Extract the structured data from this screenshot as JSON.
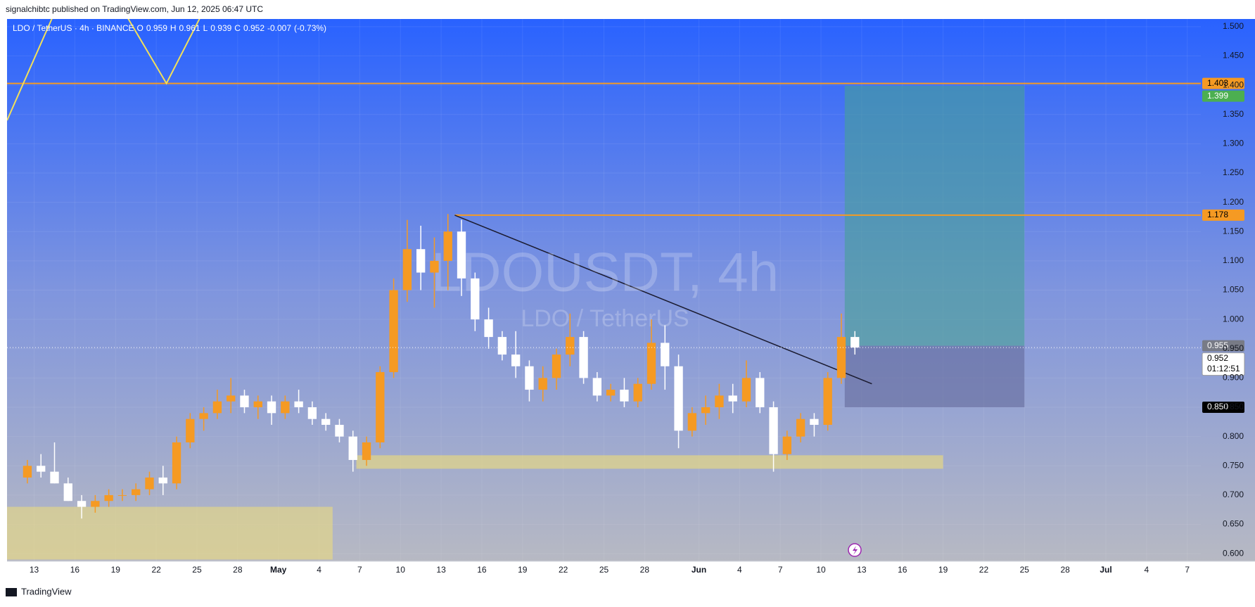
{
  "header": "signalchibtc published on TradingView.com, Jun 12, 2025 06:47 UTC",
  "footer": "TradingView",
  "chart_data": {
    "type": "candlestick",
    "legend": {
      "symbol": "LDO / TetherUS · 4h · BINANCE",
      "labels": [
        "O",
        "H",
        "L",
        "C"
      ],
      "open": 0.959,
      "high": 0.961,
      "low": 0.939,
      "close": 0.952,
      "change": -0.007,
      "change_pct": {
        "value": -0.73,
        "label": "(-0.73%)"
      }
    },
    "watermark": {
      "title": "LDOUSDT, 4h",
      "subtitle": "LDO / TetherUS"
    },
    "up_color": "#f59a23",
    "down_color": "#ffffff",
    "x": [
      "2025-04-12",
      "2025-04-13",
      "2025-04-14",
      "2025-04-15",
      "2025-04-16",
      "2025-04-17",
      "2025-04-18",
      "2025-04-19",
      "2025-04-20",
      "2025-04-21",
      "2025-04-22",
      "2025-04-23",
      "2025-04-24",
      "2025-04-25",
      "2025-04-26",
      "2025-04-27",
      "2025-04-28",
      "2025-04-29",
      "2025-04-30",
      "2025-05-01",
      "2025-05-02",
      "2025-05-03",
      "2025-05-04",
      "2025-05-05",
      "2025-05-06",
      "2025-05-07",
      "2025-05-08",
      "2025-05-09",
      "2025-05-10",
      "2025-05-11",
      "2025-05-12",
      "2025-05-13",
      "2025-05-14",
      "2025-05-15",
      "2025-05-16",
      "2025-05-17",
      "2025-05-18",
      "2025-05-19",
      "2025-05-20",
      "2025-05-21",
      "2025-05-22",
      "2025-05-23",
      "2025-05-24",
      "2025-05-25",
      "2025-05-26",
      "2025-05-27",
      "2025-05-28",
      "2025-05-29",
      "2025-05-30",
      "2025-05-31",
      "2025-06-01",
      "2025-06-02",
      "2025-06-03",
      "2025-06-04",
      "2025-06-05",
      "2025-06-06",
      "2025-06-07",
      "2025-06-08",
      "2025-06-09",
      "2025-06-10",
      "2025-06-11",
      "2025-06-12"
    ],
    "open": [
      0.73,
      0.75,
      0.74,
      0.72,
      0.69,
      0.68,
      0.69,
      0.7,
      0.7,
      0.71,
      0.73,
      0.72,
      0.79,
      0.83,
      0.84,
      0.86,
      0.87,
      0.85,
      0.86,
      0.84,
      0.86,
      0.85,
      0.83,
      0.82,
      0.8,
      0.76,
      0.79,
      0.91,
      1.05,
      1.12,
      1.08,
      1.1,
      1.15,
      1.07,
      1.0,
      0.97,
      0.94,
      0.92,
      0.88,
      0.9,
      0.94,
      0.97,
      0.9,
      0.87,
      0.88,
      0.86,
      0.89,
      0.96,
      0.92,
      0.81,
      0.84,
      0.85,
      0.87,
      0.86,
      0.9,
      0.85,
      0.77,
      0.8,
      0.83,
      0.82,
      0.9,
      0.97
    ],
    "high": [
      0.76,
      0.77,
      0.79,
      0.73,
      0.7,
      0.7,
      0.71,
      0.71,
      0.72,
      0.74,
      0.75,
      0.8,
      0.84,
      0.85,
      0.88,
      0.9,
      0.88,
      0.87,
      0.87,
      0.87,
      0.88,
      0.86,
      0.84,
      0.83,
      0.81,
      0.8,
      0.92,
      1.07,
      1.17,
      1.16,
      1.14,
      1.18,
      1.17,
      1.08,
      1.02,
      0.98,
      0.98,
      0.93,
      0.92,
      0.95,
      1.01,
      0.98,
      0.91,
      0.89,
      0.9,
      0.9,
      1.0,
      0.99,
      0.94,
      0.85,
      0.87,
      0.89,
      0.89,
      0.93,
      0.91,
      0.86,
      0.81,
      0.84,
      0.84,
      0.91,
      1.01,
      0.98
    ],
    "low": [
      0.72,
      0.73,
      0.72,
      0.69,
      0.66,
      0.67,
      0.68,
      0.69,
      0.69,
      0.7,
      0.7,
      0.71,
      0.78,
      0.81,
      0.83,
      0.84,
      0.84,
      0.83,
      0.82,
      0.83,
      0.84,
      0.82,
      0.81,
      0.79,
      0.74,
      0.75,
      0.78,
      0.9,
      1.03,
      1.05,
      1.02,
      1.05,
      1.04,
      0.98,
      0.95,
      0.93,
      0.9,
      0.86,
      0.86,
      0.88,
      0.92,
      0.89,
      0.86,
      0.86,
      0.85,
      0.85,
      0.88,
      0.88,
      0.78,
      0.8,
      0.82,
      0.83,
      0.84,
      0.85,
      0.84,
      0.74,
      0.76,
      0.79,
      0.8,
      0.81,
      0.89,
      0.94
    ],
    "close": [
      0.75,
      0.74,
      0.72,
      0.69,
      0.68,
      0.69,
      0.7,
      0.7,
      0.71,
      0.73,
      0.72,
      0.79,
      0.83,
      0.84,
      0.86,
      0.87,
      0.85,
      0.86,
      0.84,
      0.86,
      0.85,
      0.83,
      0.82,
      0.8,
      0.76,
      0.79,
      0.91,
      1.05,
      1.12,
      1.08,
      1.1,
      1.15,
      1.07,
      1.0,
      0.97,
      0.94,
      0.92,
      0.88,
      0.9,
      0.94,
      0.97,
      0.9,
      0.87,
      0.88,
      0.86,
      0.89,
      0.96,
      0.92,
      0.81,
      0.84,
      0.85,
      0.87,
      0.86,
      0.9,
      0.85,
      0.77,
      0.8,
      0.83,
      0.82,
      0.9,
      0.97,
      0.952
    ],
    "xlim": [
      "2025-04-11",
      "2025-07-08"
    ],
    "xticks": [
      {
        "value": "2025-04-13",
        "label": "13"
      },
      {
        "value": "2025-04-16",
        "label": "16"
      },
      {
        "value": "2025-04-19",
        "label": "19"
      },
      {
        "value": "2025-04-22",
        "label": "22"
      },
      {
        "value": "2025-04-25",
        "label": "25"
      },
      {
        "value": "2025-04-28",
        "label": "28"
      },
      {
        "value": "2025-05-01",
        "label": "May"
      },
      {
        "value": "2025-05-04",
        "label": "4"
      },
      {
        "value": "2025-05-07",
        "label": "7"
      },
      {
        "value": "2025-05-10",
        "label": "10"
      },
      {
        "value": "2025-05-13",
        "label": "13"
      },
      {
        "value": "2025-05-16",
        "label": "16"
      },
      {
        "value": "2025-05-19",
        "label": "19"
      },
      {
        "value": "2025-05-22",
        "label": "22"
      },
      {
        "value": "2025-05-25",
        "label": "25"
      },
      {
        "value": "2025-05-28",
        "label": "28"
      },
      {
        "value": "2025-06-01",
        "label": "Jun"
      },
      {
        "value": "2025-06-04",
        "label": "4"
      },
      {
        "value": "2025-06-07",
        "label": "7"
      },
      {
        "value": "2025-06-10",
        "label": "10"
      },
      {
        "value": "2025-06-13",
        "label": "13"
      },
      {
        "value": "2025-06-16",
        "label": "16"
      },
      {
        "value": "2025-06-19",
        "label": "19"
      },
      {
        "value": "2025-06-22",
        "label": "22"
      },
      {
        "value": "2025-06-25",
        "label": "25"
      },
      {
        "value": "2025-06-28",
        "label": "28"
      },
      {
        "value": "2025-07-01",
        "label": "Jul"
      },
      {
        "value": "2025-07-04",
        "label": "4"
      },
      {
        "value": "2025-07-07",
        "label": "7"
      }
    ],
    "ylim": [
      0.587,
      1.513
    ],
    "yticks": [
      {
        "value": 0.6,
        "label": "0.600"
      },
      {
        "value": 0.65,
        "label": "0.650"
      },
      {
        "value": 0.7,
        "label": "0.700"
      },
      {
        "value": 0.75,
        "label": "0.750"
      },
      {
        "value": 0.8,
        "label": "0.800"
      },
      {
        "value": 0.85,
        "label": "0.850"
      },
      {
        "value": 0.9,
        "label": "0.900"
      },
      {
        "value": 0.95,
        "label": "0.950"
      },
      {
        "value": 1.0,
        "label": "1.000"
      },
      {
        "value": 1.05,
        "label": "1.050"
      },
      {
        "value": 1.1,
        "label": "1.100"
      },
      {
        "value": 1.15,
        "label": "1.150"
      },
      {
        "value": 1.2,
        "label": "1.200"
      },
      {
        "value": 1.25,
        "label": "1.250"
      },
      {
        "value": 1.3,
        "label": "1.300"
      },
      {
        "value": 1.35,
        "label": "1.350"
      },
      {
        "value": 1.4,
        "label": "1.400"
      },
      {
        "value": 1.45,
        "label": "1.450"
      },
      {
        "value": 1.5,
        "label": "1.500"
      }
    ],
    "hlines": [
      {
        "value": 1.403,
        "x_start": "2025-04-11",
        "color": "#f59a23"
      },
      {
        "value": 1.178,
        "x_start": "2025-05-14",
        "color": "#f59a23"
      }
    ],
    "trendline": {
      "x": [
        "2025-05-14",
        "2025-06-13T18:00Z"
      ],
      "y": [
        1.178,
        0.89
      ],
      "color": "#1a1a2e"
    },
    "zigzag": {
      "x": [
        "2025-04-11",
        "2025-04-15",
        "2025-04-19",
        "2025-04-22T18:00Z",
        "2025-04-26"
      ],
      "y": [
        1.34,
        1.55,
        1.55,
        1.403,
        1.55
      ],
      "color": "#f2e05a"
    },
    "zones": [
      {
        "x": [
          "2025-04-11",
          "2025-05-05"
        ],
        "y": [
          0.59,
          0.68
        ],
        "color": "rgba(240,222,120,0.55)"
      },
      {
        "x": [
          "2025-05-06T18:00Z",
          "2025-06-19"
        ],
        "y": [
          0.745,
          0.768
        ],
        "color": "rgba(240,222,120,0.6)"
      }
    ],
    "position": {
      "x": [
        "2025-06-11T18:00Z",
        "2025-06-25"
      ],
      "entry": 0.955,
      "target": 1.399,
      "stop": {
        "value": 0.85,
        "label": "0.850"
      },
      "target_color": "rgba(70,160,150,0.6)",
      "stop_color": "rgba(95,100,150,0.55)"
    },
    "price_labels": [
      {
        "value": 1.403,
        "color": "#f59a23",
        "text_color": "#000000"
      },
      {
        "value": 1.399,
        "color": "#4caf50",
        "text_color": "#ffffff"
      },
      {
        "value": 1.178,
        "color": "#f59a23",
        "text_color": "#000000"
      },
      {
        "value": 0.955,
        "color": "#787b86",
        "text_color": "#ffffff"
      },
      {
        "value": 0.952,
        "color": "#ffffff",
        "text_color": "#000000"
      },
      {
        "value": 0.85,
        "label": "0.850",
        "color": "#000000",
        "text_color": "#ffffff"
      }
    ],
    "countdown": "01:12:51"
  }
}
